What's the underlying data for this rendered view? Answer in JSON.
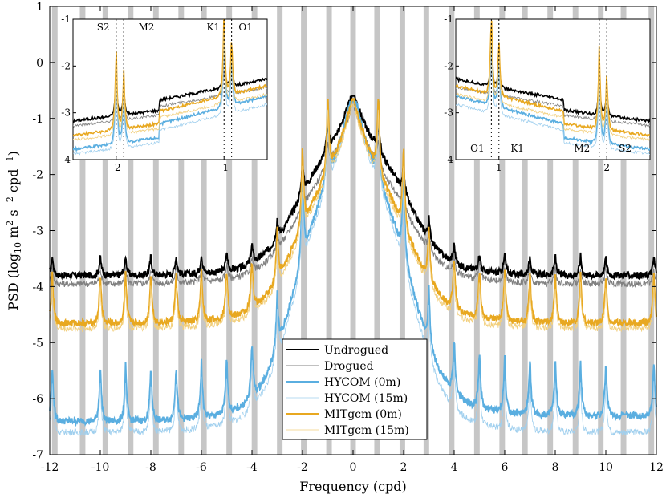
{
  "chart_data": {
    "type": "line",
    "xlabel": "Frequency (cpd)",
    "ylabel_main": "PSD (log",
    "ylabel_sub": "10",
    "ylabel_rest": " m",
    "ylabel_exp1": "2",
    "ylabel_mid": " s",
    "ylabel_exp2": "−2",
    "ylabel_cpd": " cpd",
    "ylabel_exp3": "−1",
    "ylabel_close": ")",
    "xlim": [
      -12,
      12
    ],
    "ylim": [
      -7,
      1
    ],
    "xticks": [
      "-12",
      "-10",
      "-8",
      "-6",
      "-4",
      "-2",
      "0",
      "2",
      "4",
      "6",
      "8",
      "10",
      "12"
    ],
    "xtick_values": [
      -12,
      -10,
      -8,
      -6,
      -4,
      -2,
      0,
      2,
      4,
      6,
      8,
      10,
      12
    ],
    "yticks": [
      "-7",
      "-6",
      "-5",
      "-4",
      "-3",
      "-2",
      "-1",
      "0",
      "1"
    ],
    "ytick_values": [
      -7,
      -6,
      -5,
      -4,
      -3,
      -2,
      -1,
      0,
      1
    ],
    "shaded_bands": [
      -11.8,
      -10.7,
      -9.8,
      -8.8,
      -7.8,
      -6.8,
      -5.9,
      -4.9,
      -3.9,
      -2.9,
      -1.95,
      -0.95,
      0,
      0.95,
      1.95,
      2.9,
      3.9,
      4.9,
      5.9,
      6.8,
      7.8,
      8.8,
      9.8,
      10.7,
      11.8
    ],
    "tidal_peaks": [
      -2,
      -1,
      1,
      2,
      -4,
      -3,
      -5,
      -6,
      3,
      4,
      5,
      6,
      -8,
      -7,
      7,
      8,
      -10,
      -9,
      9,
      10,
      -11.9,
      11.9
    ],
    "series": [
      {
        "name": "Undrogued",
        "color": "#000000",
        "width": 2.0,
        "base_left": -3.8,
        "base_right": -3.8,
        "center_peak": -0.6,
        "tide_height": 0.35,
        "low_hump": -2.0
      },
      {
        "name": "Drogued",
        "color": "#808080",
        "width": 1.0,
        "base_left": -3.95,
        "base_right": -3.95,
        "center_peak": -0.75,
        "tide_height": 0.3,
        "low_hump": -2.4
      },
      {
        "name": "HYCOM (0m)",
        "color": "#5aaee0",
        "width": 2.0,
        "base_left": -6.4,
        "base_right": -6.3,
        "center_peak": -0.7,
        "tide_height": 1.0,
        "low_hump": -2.5
      },
      {
        "name": "HYCOM (15m)",
        "color": "#9fcfee",
        "width": 0.8,
        "base_left": -6.6,
        "base_right": -6.6,
        "center_peak": -0.8,
        "tide_height": 0.9,
        "low_hump": -2.6
      },
      {
        "name": "MITgcm (0m)",
        "color": "#e8a820",
        "width": 2.0,
        "base_left": -4.65,
        "base_right": -4.65,
        "center_peak": -0.65,
        "tide_height": 0.9,
        "low_hump": -2.6
      },
      {
        "name": "MITgcm (15m)",
        "color": "#f2cf7c",
        "width": 0.8,
        "base_left": -4.75,
        "base_right": -4.75,
        "center_peak": -0.75,
        "tide_height": 0.8,
        "low_hump": -2.7
      }
    ],
    "legend": [
      "Undrogued",
      "Drogued",
      "HYCOM (0m)",
      "HYCOM (15m)",
      "MITgcm (0m)",
      "MITgcm (15m)"
    ],
    "inset_left": {
      "xlim": [
        -2.4,
        -0.6
      ],
      "ylim": [
        -4,
        -1
      ],
      "xticks": [
        "-2",
        "-1"
      ],
      "xtick_values": [
        -2,
        -1
      ],
      "yticks": [
        "-4",
        "-3",
        "-2",
        "-1"
      ],
      "ytick_values": [
        -4,
        -3,
        -2,
        -1
      ],
      "tide_lines": [
        -2.0,
        -1.93,
        -1.0,
        -0.93
      ],
      "tide_labels": [
        {
          "text": "S2",
          "x": -2.12
        },
        {
          "text": "M2",
          "x": -1.72
        },
        {
          "text": "K1",
          "x": -1.1
        },
        {
          "text": "O1",
          "x": -0.8
        }
      ]
    },
    "inset_right": {
      "xlim": [
        0.6,
        2.4
      ],
      "ylim": [
        -4,
        -1
      ],
      "xticks": [
        "1",
        "2"
      ],
      "xtick_values": [
        1,
        2
      ],
      "yticks": [
        "-4",
        "-3",
        "-2",
        "-1"
      ],
      "ytick_values": [
        -4,
        -3,
        -2,
        -1
      ],
      "tide_lines": [
        0.93,
        1.0,
        1.93,
        2.0
      ],
      "tide_labels": [
        {
          "text": "O1",
          "x": 0.8
        },
        {
          "text": "K1",
          "x": 1.17
        },
        {
          "text": "M2",
          "x": 1.77
        },
        {
          "text": "S2",
          "x": 2.17
        }
      ]
    }
  }
}
